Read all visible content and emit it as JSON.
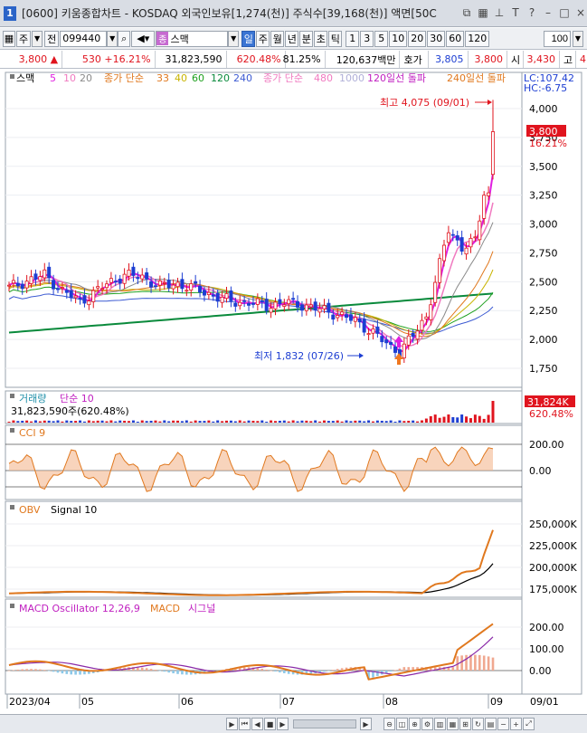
{
  "window": {
    "badge": "1",
    "title": "[0600] 키움종합차트 - KOSDAQ 외국인보유[1,274(천)] 주식수[39,168(천)] 액면[50C",
    "icons": [
      "restore-icon",
      "grid-icon",
      "pin-icon",
      "text-icon",
      "help-icon",
      "minimize-icon",
      "maximize-icon",
      "close-icon"
    ],
    "icon_glyphs": [
      "⧉",
      "▦",
      "⊥",
      "T",
      "?",
      "–",
      "□",
      "×"
    ]
  },
  "toolbar": {
    "period": "주",
    "prev": "전",
    "code": "099440",
    "name_tag": "종",
    "name": "스맥",
    "timeframes": [
      "일",
      "주",
      "월",
      "년",
      "분",
      "초",
      "틱"
    ],
    "active_timeframe": "일",
    "minutes": [
      "1",
      "3",
      "5",
      "10",
      "20",
      "30",
      "60",
      "120"
    ],
    "count": "100"
  },
  "quote": {
    "price": "3,800",
    "arrow": "▲",
    "change": "530",
    "change_pct": "+16.21%",
    "volume": "31,823,590",
    "vol_pct": "620.48%",
    "ratio": "81.25%",
    "amount": "120,637백만",
    "hoga_label": "호가",
    "ask": "3,805",
    "bid": "3,800",
    "open_label": "시",
    "open": "3,430",
    "high_label": "고",
    "high": "4"
  },
  "legend": {
    "stock": "스맥",
    "ma_short_nums": [
      "5",
      "10",
      "20"
    ],
    "ma_mid_label": "종가 단순",
    "ma_mid_nums": [
      "33",
      "40",
      "60",
      "120",
      "240"
    ],
    "ma_long_label": "종가 단순",
    "ma_long_nums": [
      "480",
      "1000"
    ],
    "signal1": "120일선 돌파",
    "signal2": "240일선 돌파",
    "lc": "LC:107.42",
    "hc": "HC:-6.75"
  },
  "price_panel": {
    "high_label": "최고 4,075 (09/01)",
    "low_label": "최저 1,832 (07/26)",
    "current_box": "3,800",
    "current_pct": "16.21%",
    "ticks": [
      "4,000",
      "3,750",
      "3,500",
      "3,250",
      "3,000",
      "2,750",
      "2,500",
      "2,250",
      "2,000",
      "1,750"
    ]
  },
  "volume_panel": {
    "title": "거래량",
    "ma_label": "단순 10",
    "value_line": "31,823,590주(620.48%)",
    "box": "31,824K",
    "box_pct": "620.48%"
  },
  "cci_panel": {
    "title": "CCI 9",
    "ticks": [
      "200.00",
      "0.00"
    ]
  },
  "obv_panel": {
    "title": "OBV",
    "signal": "Signal 10",
    "ticks": [
      "250,000K",
      "225,000K",
      "200,000K",
      "175,000K"
    ]
  },
  "macd_panel": {
    "title": "MACD Oscillator 12,26,9",
    "macd": "MACD",
    "signal": "시그널",
    "ticks": [
      "200.00",
      "100.00",
      "0.00"
    ]
  },
  "x_axis": {
    "labels": [
      "2023/04",
      "05",
      "06",
      "07",
      "08",
      "09"
    ],
    "right_label": "09/01"
  },
  "colors": {
    "up": "#e0141e",
    "down": "#1d3ed2",
    "ma5": "#e01ee0",
    "ma10": "#f07ac0",
    "ma20": "#8a8a8a",
    "ma33": "#e0781e",
    "ma40": "#c8b400",
    "ma60": "#1ea01e",
    "ma120": "#0a8a3c",
    "ma240": "#3c5ad2",
    "orange": "#e0781e"
  }
}
